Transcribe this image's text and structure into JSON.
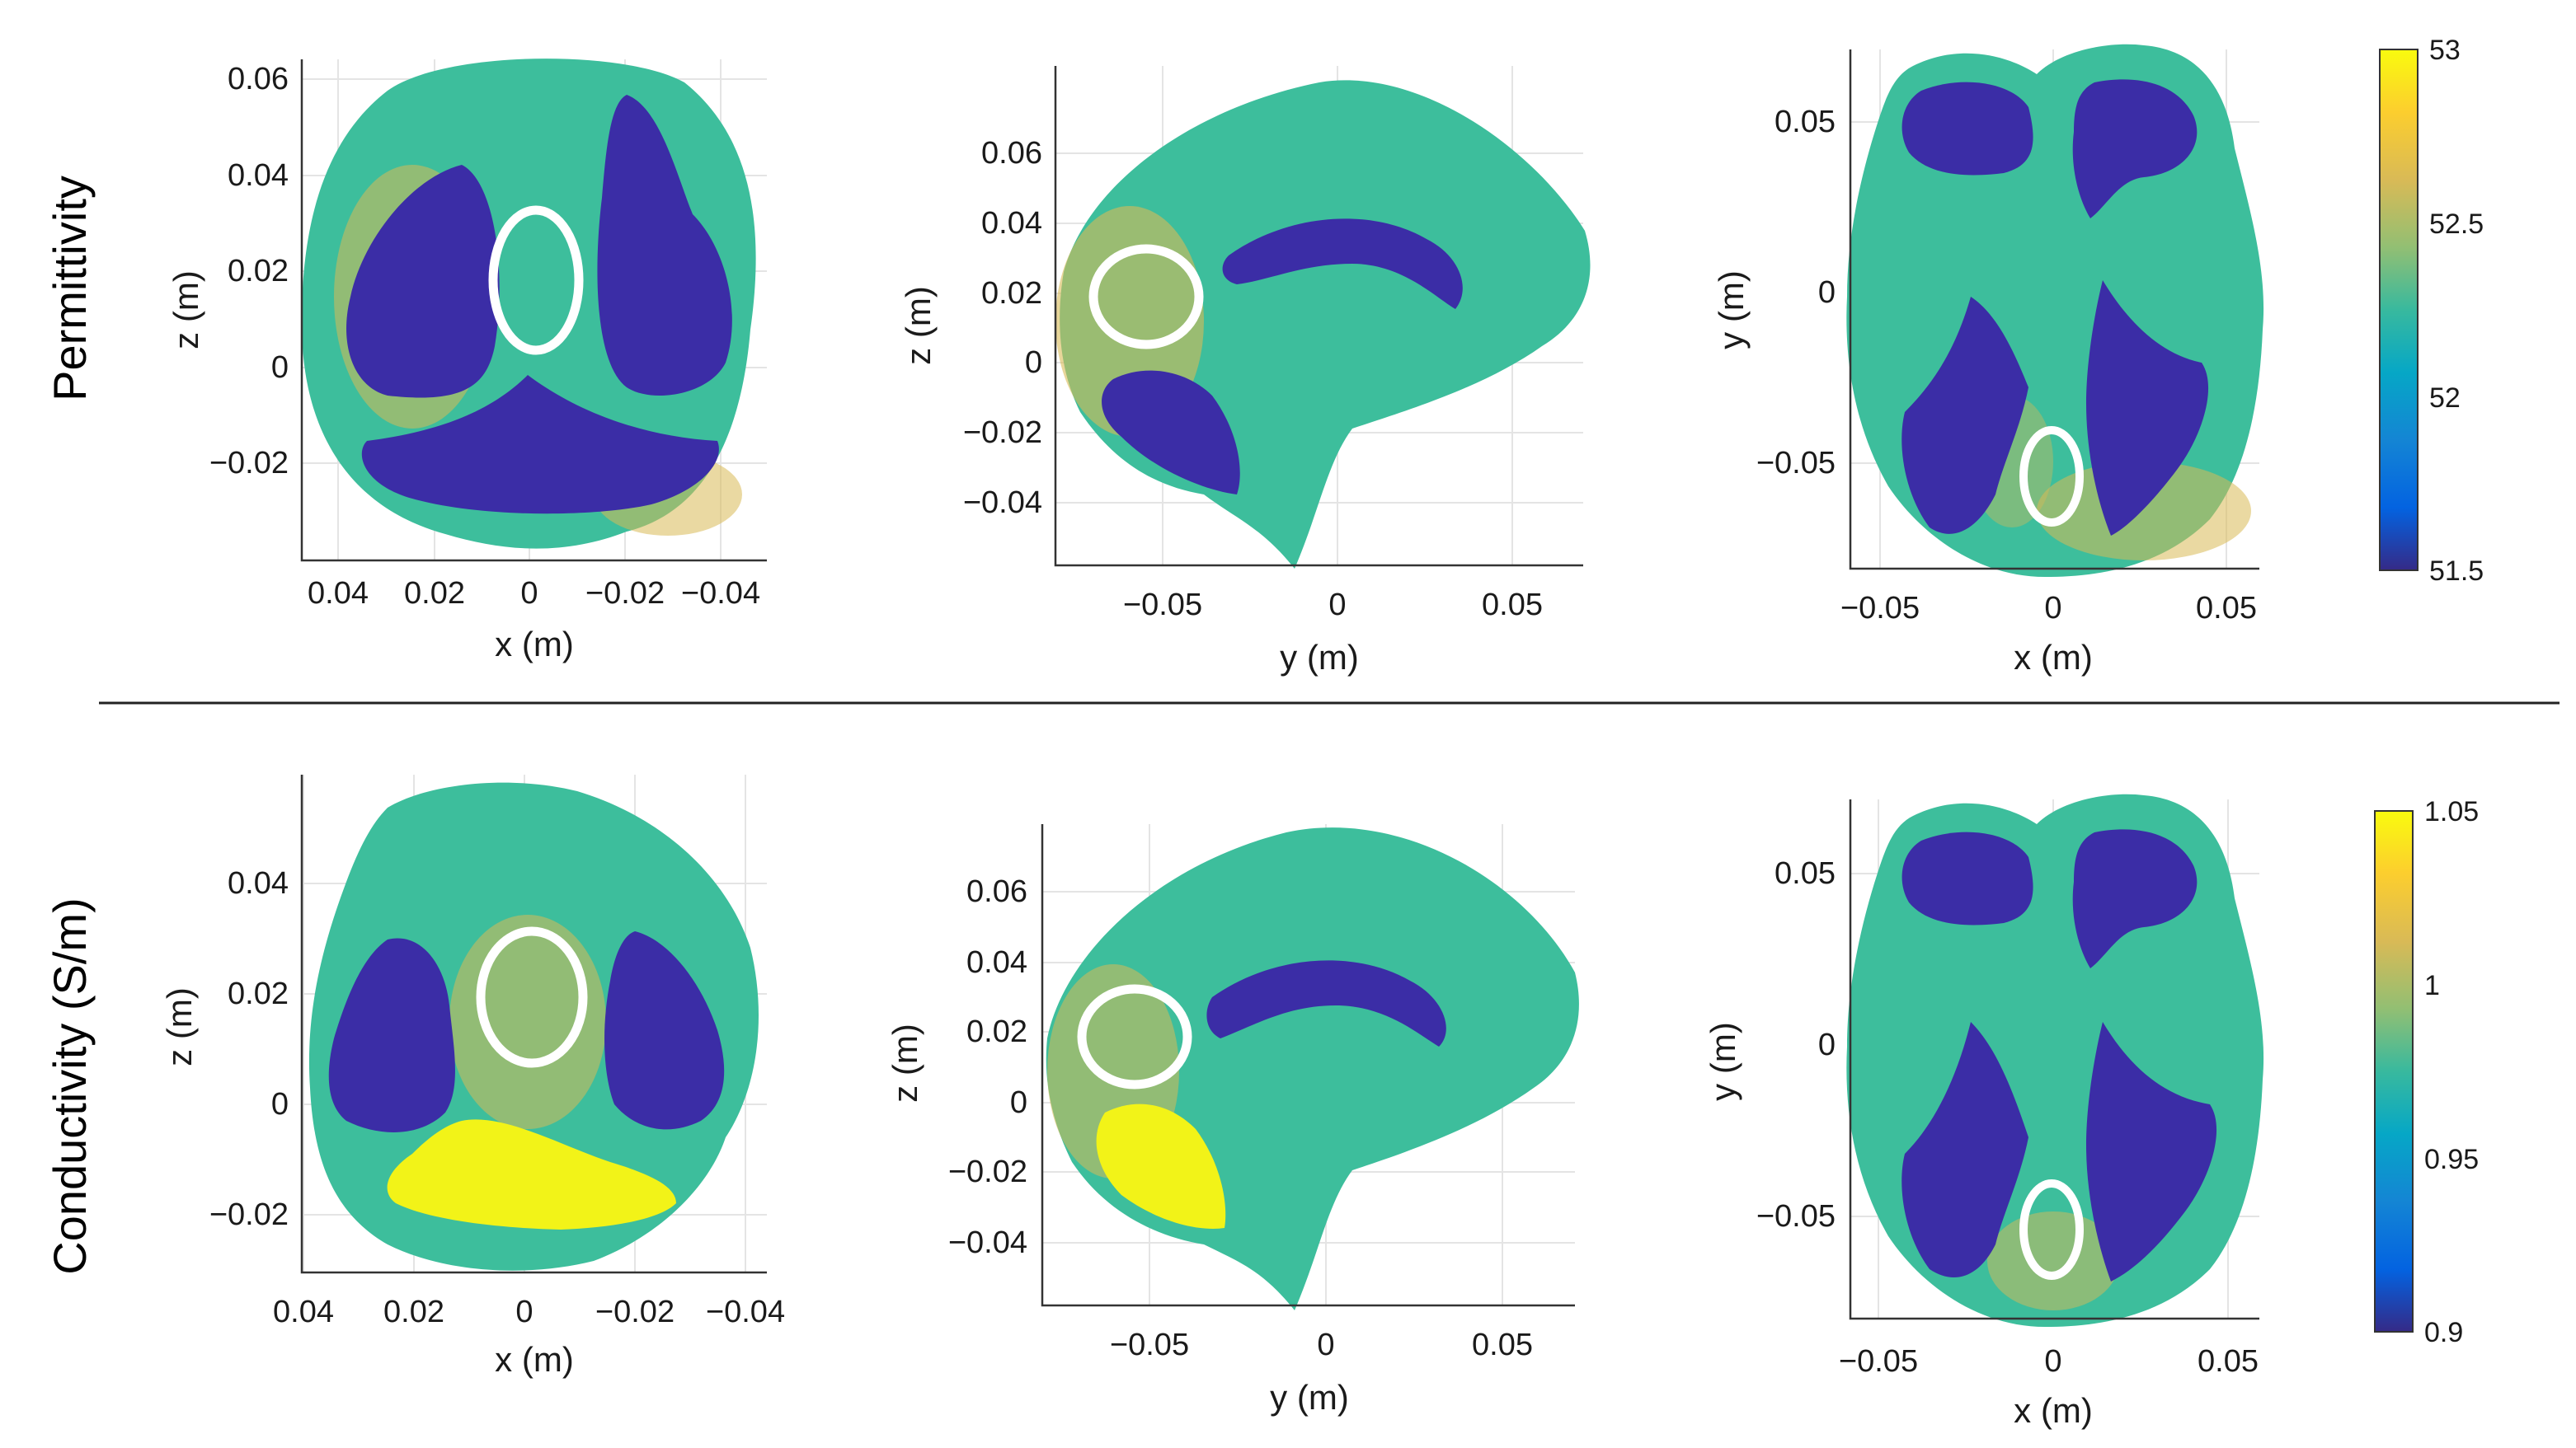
{
  "chart_data": [
    {
      "type": "heatmap",
      "row": "Permittivity",
      "view": "coronal",
      "xlabel": "x (m)",
      "ylabel": "z (m)",
      "xticks": [
        "0.04",
        "0.02",
        "0",
        "−0.02",
        "−0.04"
      ],
      "yticks": [
        "0.06",
        "0.04",
        "0.02",
        "0",
        "−0.02"
      ],
      "xlim": [
        0.048,
        -0.048
      ],
      "ylim": [
        -0.04,
        0.065
      ],
      "x_reversed": true
    },
    {
      "type": "heatmap",
      "row": "Permittivity",
      "view": "sagittal",
      "xlabel": "y (m)",
      "ylabel": "z (m)",
      "xticks": [
        "−0.05",
        "0",
        "0.05"
      ],
      "yticks": [
        "0.06",
        "0.04",
        "0.02",
        "0",
        "−0.02",
        "−0.04"
      ],
      "xlim": [
        -0.08,
        0.07
      ],
      "ylim": [
        -0.058,
        0.08
      ]
    },
    {
      "type": "heatmap",
      "row": "Permittivity",
      "view": "axial",
      "xlabel": "x (m)",
      "ylabel": "y (m)",
      "xticks": [
        "−0.05",
        "0",
        "0.05"
      ],
      "yticks": [
        "0.05",
        "0",
        "−0.05"
      ],
      "xlim": [
        -0.06,
        0.06
      ],
      "ylim": [
        -0.08,
        0.07
      ]
    },
    {
      "type": "heatmap",
      "row": "Conductivity (S/m)",
      "view": "coronal",
      "xlabel": "x (m)",
      "ylabel": "z (m)",
      "xticks": [
        "0.04",
        "0.02",
        "0",
        "−0.02",
        "−0.04"
      ],
      "yticks": [
        "0.04",
        "0.02",
        "0",
        "−0.02"
      ],
      "xlim": [
        0.045,
        -0.048
      ],
      "ylim": [
        -0.031,
        0.058
      ],
      "x_reversed": true
    },
    {
      "type": "heatmap",
      "row": "Conductivity (S/m)",
      "view": "sagittal",
      "xlabel": "y (m)",
      "ylabel": "z (m)",
      "xticks": [
        "−0.05",
        "0",
        "0.05"
      ],
      "yticks": [
        "0.06",
        "0.04",
        "0.02",
        "0",
        "−0.02",
        "−0.04"
      ],
      "xlim": [
        -0.08,
        0.07
      ],
      "ylim": [
        -0.058,
        0.08
      ]
    },
    {
      "type": "heatmap",
      "row": "Conductivity (S/m)",
      "view": "axial",
      "xlabel": "x (m)",
      "ylabel": "y (m)",
      "xticks": [
        "−0.05",
        "0",
        "0.05"
      ],
      "yticks": [
        "0.05",
        "0",
        "−0.05"
      ],
      "xlim": [
        -0.06,
        0.06
      ],
      "ylim": [
        -0.08,
        0.07
      ]
    }
  ],
  "row_labels": [
    "Permittivity",
    "Conductivity (S/m)"
  ],
  "colorbars": [
    {
      "row": "Permittivity",
      "min": 51.5,
      "max": 53,
      "tick_labels": [
        "53",
        "52.5",
        "52",
        "51.5"
      ],
      "tick_values": [
        53,
        52.5,
        52,
        51.5
      ],
      "colormap": "parula"
    },
    {
      "row": "Conductivity (S/m)",
      "min": 0.9,
      "max": 1.05,
      "tick_labels": [
        "1.05",
        "1",
        "0.95",
        "0.9"
      ],
      "tick_values": [
        1.05,
        1,
        0.95,
        0.9
      ],
      "colormap": "parula"
    }
  ],
  "colors": {
    "dark_region": "#3b2da6",
    "tissue": "#3dbe9c",
    "hot_region": "#f2f318",
    "tumor_outline": "#ffffff"
  }
}
